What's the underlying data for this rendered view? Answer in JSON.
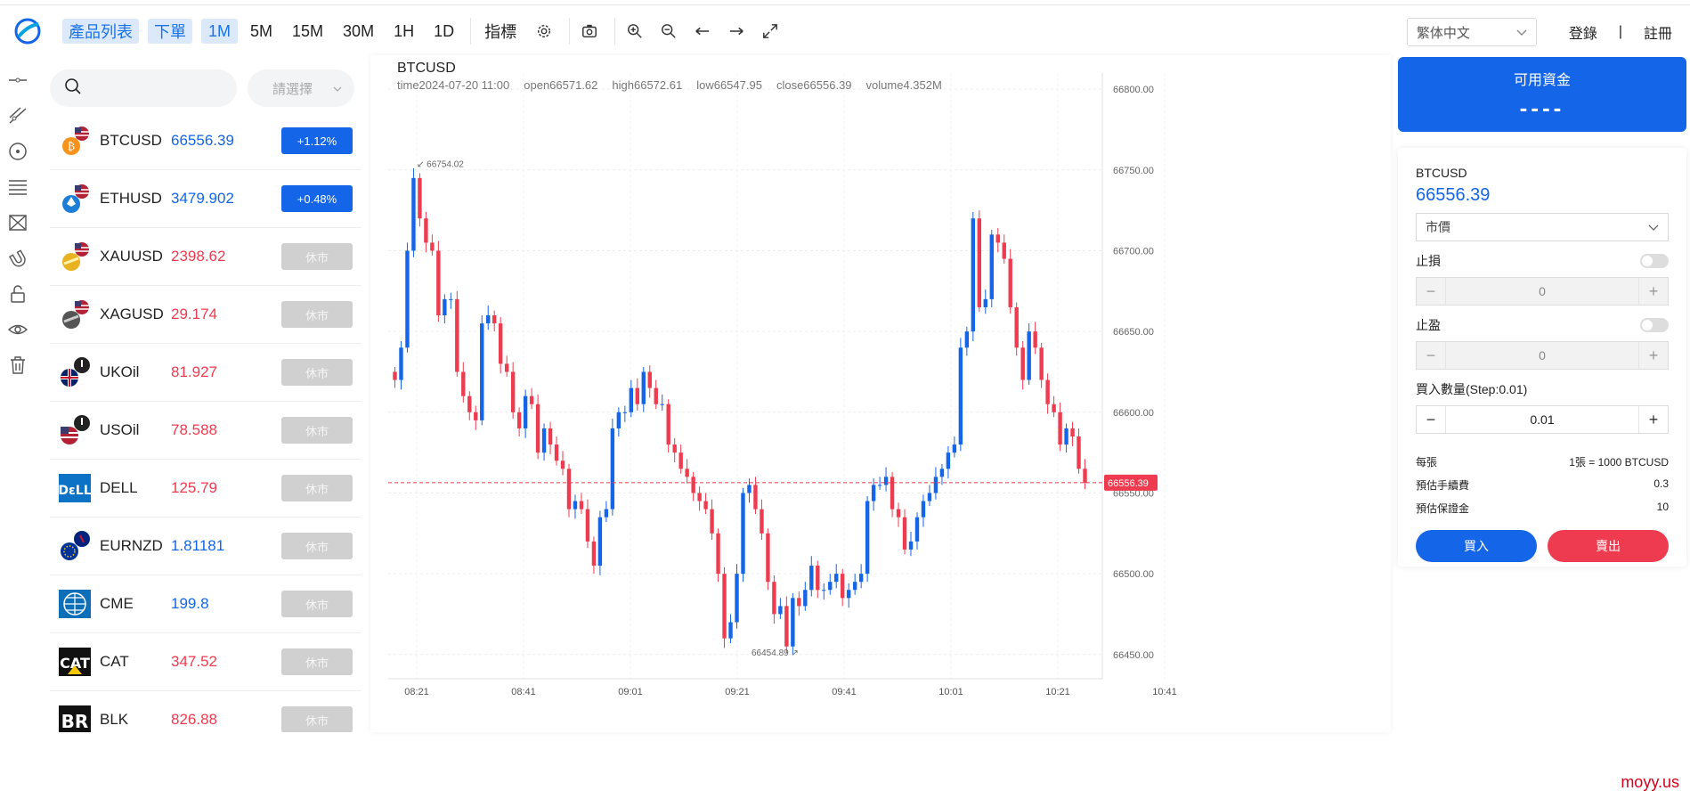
{
  "toolbar": {
    "product_list": "產品列表",
    "place_order": "下單",
    "timeframes": [
      "1M",
      "5M",
      "15M",
      "30M",
      "1H",
      "1D"
    ],
    "active_timeframe": "1M",
    "indicators": "指標",
    "icons": [
      "gear-icon",
      "camera-icon",
      "zoom-in-icon",
      "zoom-out-icon",
      "arrow-left-icon",
      "arrow-right-icon",
      "fullscreen-icon"
    ],
    "language": "繁体中文",
    "login": "登錄",
    "separator": "|",
    "register": "註冊"
  },
  "drawing_tools": [
    "horizontal-line-icon",
    "trend-line-icon",
    "circle-tool-icon",
    "fib-lines-icon",
    "pattern-tool-icon",
    "magnet-icon",
    "unlock-icon",
    "eye-icon",
    "trash-icon"
  ],
  "search": {
    "placeholder": "",
    "select_placeholder": "請選擇"
  },
  "symbols": [
    {
      "name": "BTCUSD",
      "price": "66556.39",
      "price_color": "#1565e8",
      "badge": "+1.12%",
      "badge_type": "up",
      "icon": "bitcoin-us-flag-icon"
    },
    {
      "name": "ETHUSD",
      "price": "3479.902",
      "price_color": "#1565e8",
      "badge": "+0.48%",
      "badge_type": "up",
      "icon": "ethereum-us-flag-icon"
    },
    {
      "name": "XAUUSD",
      "price": "2398.62",
      "price_color": "#ef3b4f",
      "badge": "休市",
      "badge_type": "closed",
      "icon": "gold-us-flag-icon"
    },
    {
      "name": "XAGUSD",
      "price": "29.174",
      "price_color": "#ef3b4f",
      "badge": "休市",
      "badge_type": "closed",
      "icon": "silver-us-flag-icon"
    },
    {
      "name": "UKOil",
      "price": "81.927",
      "price_color": "#ef3b4f",
      "badge": "休市",
      "badge_type": "closed",
      "icon": "oil-uk-flag-icon"
    },
    {
      "name": "USOil",
      "price": "78.588",
      "price_color": "#ef3b4f",
      "badge": "休市",
      "badge_type": "closed",
      "icon": "oil-us-flag-icon"
    },
    {
      "name": "DELL",
      "price": "125.79",
      "price_color": "#ef3b4f",
      "badge": "休市",
      "badge_type": "closed",
      "icon": "dell-logo-icon"
    },
    {
      "name": "EURNZD",
      "price": "1.81181",
      "price_color": "#1565e8",
      "badge": "休市",
      "badge_type": "closed",
      "icon": "eu-nz-flag-icon"
    },
    {
      "name": "CME",
      "price": "199.8",
      "price_color": "#1565e8",
      "badge": "休市",
      "badge_type": "closed",
      "icon": "cme-globe-icon"
    },
    {
      "name": "CAT",
      "price": "347.52",
      "price_color": "#ef3b4f",
      "badge": "休市",
      "badge_type": "closed",
      "icon": "cat-logo-icon"
    },
    {
      "name": "BLK",
      "price": "826.88",
      "price_color": "#ef3b4f",
      "badge": "休市",
      "badge_type": "closed",
      "icon": "blk-logo-icon"
    }
  ],
  "chart": {
    "title": "BTCUSD",
    "ohlc": {
      "time": "time2024-07-20 11:00",
      "open": "open66571.62",
      "high": "high66572.61",
      "low": "low66547.95",
      "close": "close66556.39",
      "volume": "volume4.352M"
    },
    "high_marker": "66754.02",
    "low_marker": "66454.89",
    "last_price_label": "66556.39"
  },
  "chart_data": {
    "type": "candlestick",
    "title": "BTCUSD",
    "y_ticks": [
      "66800.00",
      "66750.00",
      "66700.00",
      "66650.00",
      "66600.00",
      "66550.00",
      "66500.00",
      "66450.00"
    ],
    "x_ticks": [
      "08:21",
      "08:41",
      "09:01",
      "09:21",
      "09:41",
      "10:01",
      "10:21",
      "10:41"
    ],
    "ylim": [
      66435,
      66810
    ],
    "last_price": 66556.39,
    "max_high": 66754.02,
    "min_low": 66454.89,
    "up_color": "#1565e8",
    "down_color": "#ef3b4f",
    "closes": [
      66620,
      66640,
      66700,
      66745,
      66720,
      66705,
      66700,
      66660,
      66670,
      66670,
      66625,
      66610,
      66600,
      66595,
      66655,
      66660,
      66655,
      66630,
      66625,
      66600,
      66590,
      66610,
      66605,
      66575,
      66590,
      66580,
      66570,
      66565,
      66540,
      66545,
      66540,
      66520,
      66505,
      66535,
      66540,
      66590,
      66600,
      66600,
      66615,
      66605,
      66625,
      66615,
      66605,
      66605,
      66580,
      66575,
      66565,
      66560,
      66550,
      66545,
      66540,
      66525,
      66500,
      66460,
      66470,
      66500,
      66550,
      66555,
      66540,
      66525,
      66495,
      66475,
      66480,
      66455,
      66485,
      66480,
      66490,
      66505,
      66490,
      66490,
      66495,
      66500,
      66485,
      66490,
      66495,
      66500,
      66545,
      66555,
      66555,
      66560,
      66540,
      66535,
      66515,
      66520,
      66535,
      66545,
      66550,
      66560,
      66565,
      66575,
      66580,
      66640,
      66650,
      66720,
      66665,
      66670,
      66710,
      66705,
      66695,
      66665,
      66640,
      66620,
      66650,
      66640,
      66620,
      66605,
      66600,
      66580,
      66590,
      66585,
      66565,
      66556.39
    ]
  },
  "right": {
    "available_funds_label": "可用資金",
    "available_funds_value": "----",
    "symbol": "BTCUSD",
    "price": "66556.39",
    "order_type": "市價",
    "stop_loss_label": "止損",
    "stop_loss_value": "0",
    "take_profit_label": "止盈",
    "take_profit_value": "0",
    "quantity_label": "買入數量(Step:0.01)",
    "quantity_value": "0.01",
    "minus": "−",
    "plus": "+",
    "per_lot_label": "每張",
    "per_lot_value": "1張 = 1000 BTCUSD",
    "fee_label": "預估手續費",
    "fee_value": "0.3",
    "margin_label": "預估保證金",
    "margin_value": "10",
    "buy_label": "買入",
    "sell_label": "賣出"
  },
  "watermark": "moyy.us"
}
